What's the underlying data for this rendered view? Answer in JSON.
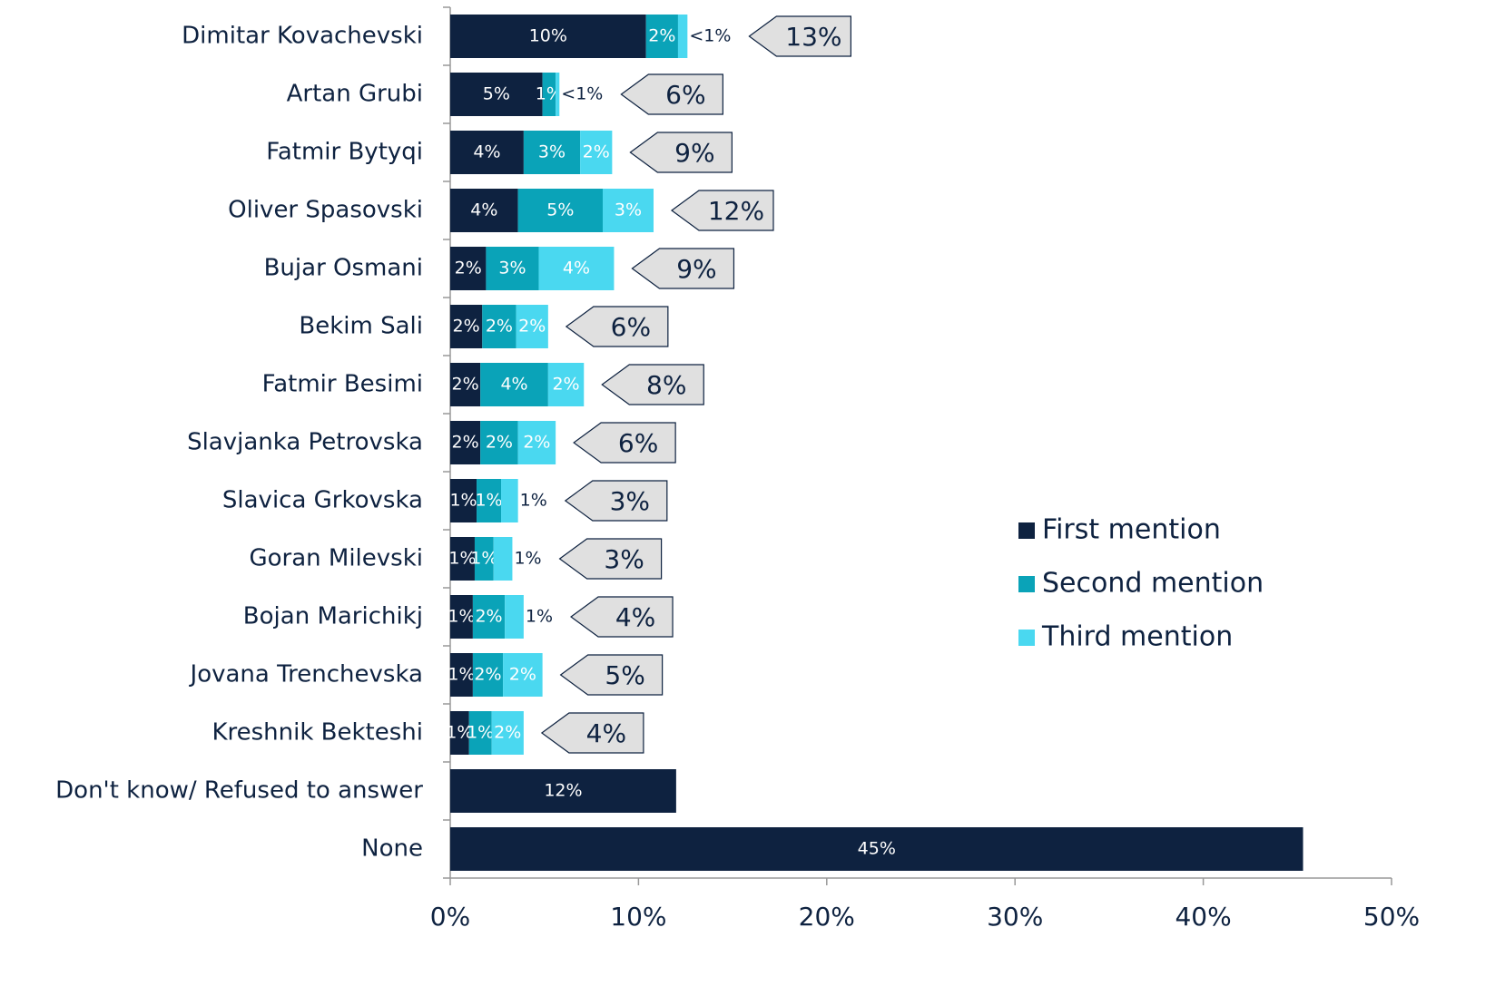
{
  "chart_data": {
    "type": "stacked-bar-horizontal",
    "categories": [
      "Dimitar Kovachevski",
      "Artan Grubi",
      "Fatmir Bytyqi",
      "Oliver Spasovski",
      "Bujar Osmani",
      "Bekim Sali",
      "Fatmir Besimi",
      "Slavjanka Petrovska",
      "Slavica Grkovska",
      "Goran Milevski",
      "Bojan Marichikj",
      "Jovana Trenchevska",
      "Kreshnik Bekteshi",
      "Don't know/ Refused to answer",
      "None"
    ],
    "series": [
      {
        "name": "First mention",
        "color": "#0e2240",
        "values": [
          10.4,
          4.9,
          3.9,
          3.6,
          1.9,
          1.7,
          1.6,
          1.6,
          1.4,
          1.3,
          1.2,
          1.2,
          1.0,
          12.0,
          45.3
        ],
        "value_labels": [
          "10%",
          "5%",
          "4%",
          "4%",
          "2%",
          "2%",
          "2%",
          "2%",
          "1%",
          "1%",
          "1%",
          "1%",
          "1%",
          "12%",
          "45%"
        ]
      },
      {
        "name": "Second mention",
        "color": "#0aa3b8",
        "values": [
          1.7,
          0.7,
          3.0,
          4.5,
          2.8,
          1.8,
          3.6,
          2.0,
          1.3,
          1.0,
          1.7,
          1.6,
          1.2,
          null,
          null
        ],
        "value_labels": [
          "2%",
          "1%",
          "3%",
          "5%",
          "3%",
          "2%",
          "4%",
          "2%",
          "1%",
          "1%",
          "2%",
          "2%",
          "1%",
          null,
          null
        ]
      },
      {
        "name": "Third mention",
        "color": "#4ad8f0",
        "values": [
          0.5,
          0.2,
          1.7,
          2.7,
          4.0,
          1.7,
          1.9,
          2.0,
          0.9,
          1.0,
          1.0,
          2.1,
          1.7,
          null,
          null
        ],
        "value_labels": [
          "<1%",
          "<1%",
          "2%",
          "3%",
          "4%",
          "2%",
          "2%",
          "2%",
          "1%",
          "1%",
          "1%",
          "2%",
          "2%",
          null,
          null
        ]
      }
    ],
    "totals": {
      "values": [
        13,
        6,
        9,
        12,
        9,
        6,
        8,
        6,
        3,
        3,
        4,
        5,
        4,
        null,
        null
      ],
      "value_labels": [
        "13%",
        "6%",
        "9%",
        "12%",
        "9%",
        "6%",
        "8%",
        "6%",
        "3%",
        "3%",
        "4%",
        "5%",
        "4%",
        null,
        null
      ]
    },
    "xlim": [
      0,
      50
    ],
    "xticks": [
      {
        "value": 0,
        "label": "0%"
      },
      {
        "value": 10,
        "label": "10%"
      },
      {
        "value": 20,
        "label": "20%"
      },
      {
        "value": 30,
        "label": "30%"
      },
      {
        "value": 40,
        "label": "40%"
      },
      {
        "value": 50,
        "label": "50%"
      }
    ],
    "legend": "right"
  }
}
